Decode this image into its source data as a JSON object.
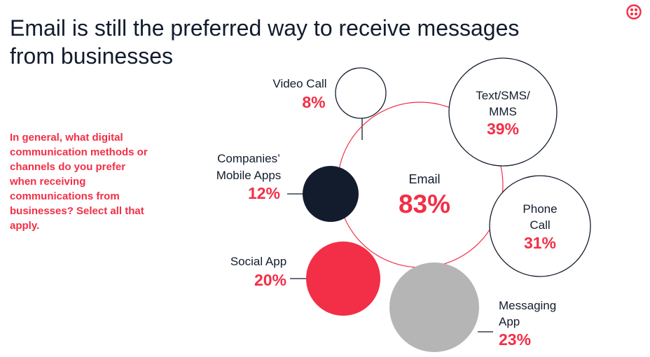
{
  "slide": {
    "title_line1": "Email is still the preferred way to receive messages",
    "title_line2": "from businesses",
    "question": "In general, what digital communication methods or channels do you prefer when receiving communications from businesses? Select all that apply.",
    "logo_icon": "twilio-logo-icon"
  },
  "colors": {
    "accent": "#f22f46",
    "dark": "#121c2d",
    "gray": "#b5b5b5",
    "outline": "#121c2d"
  },
  "chart_data": {
    "type": "bubble",
    "title": "Email is still the preferred way to receive messages from businesses",
    "unit": "%",
    "series": [
      {
        "label_lines": [
          "Email"
        ],
        "value": 83,
        "display": "83%"
      },
      {
        "label_lines": [
          "Text/SMS/",
          "MMS"
        ],
        "value": 39,
        "display": "39%"
      },
      {
        "label_lines": [
          "Phone",
          "Call"
        ],
        "value": 31,
        "display": "31%"
      },
      {
        "label_lines": [
          "Messaging",
          "App"
        ],
        "value": 23,
        "display": "23%"
      },
      {
        "label_lines": [
          "Social App"
        ],
        "value": 20,
        "display": "20%"
      },
      {
        "label_lines": [
          "Companies’",
          "Mobile Apps"
        ],
        "value": 12,
        "display": "12%"
      },
      {
        "label_lines": [
          "Video Call"
        ],
        "value": 8,
        "display": "8%"
      }
    ]
  }
}
